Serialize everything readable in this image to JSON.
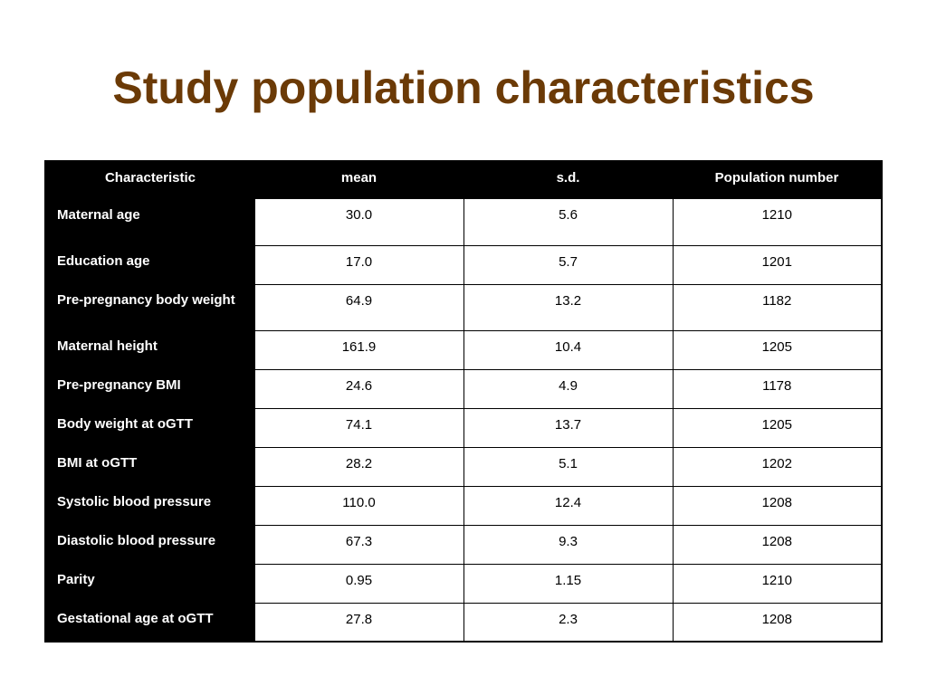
{
  "slide": {
    "title": "Study population characteristics"
  },
  "table": {
    "headers": [
      "Characteristic",
      "mean",
      "s.d.",
      "Population number"
    ],
    "rows": [
      {
        "label": "Maternal age",
        "mean": "30.0",
        "sd": "5.6",
        "n": "1210"
      },
      {
        "label": "Education age",
        "mean": "17.0",
        "sd": "5.7",
        "n": "1201"
      },
      {
        "label": "Pre-pregnancy body weight",
        "mean": "64.9",
        "sd": "13.2",
        "n": "1182"
      },
      {
        "label": "Maternal height",
        "mean": "161.9",
        "sd": "10.4",
        "n": "1205"
      },
      {
        "label": "Pre-pregnancy BMI",
        "mean": "24.6",
        "sd": "4.9",
        "n": "1178"
      },
      {
        "label": "Body weight at oGTT",
        "mean": "74.1",
        "sd": "13.7",
        "n": "1205"
      },
      {
        "label": "BMI at oGTT",
        "mean": "28.2",
        "sd": "5.1",
        "n": "1202"
      },
      {
        "label": "Systolic blood pressure",
        "mean": "110.0",
        "sd": "12.4",
        "n": "1208"
      },
      {
        "label": "Diastolic blood pressure",
        "mean": "67.3",
        "sd": "9.3",
        "n": "1208"
      },
      {
        "label": "Parity",
        "mean": "0.95",
        "sd": "1.15",
        "n": "1210"
      },
      {
        "label": "Gestational age at oGTT",
        "mean": "27.8",
        "sd": "2.3",
        "n": "1208"
      }
    ]
  },
  "colors": {
    "title": "#6b3a06",
    "header_bg": "#000000",
    "header_text": "#ffffff"
  }
}
